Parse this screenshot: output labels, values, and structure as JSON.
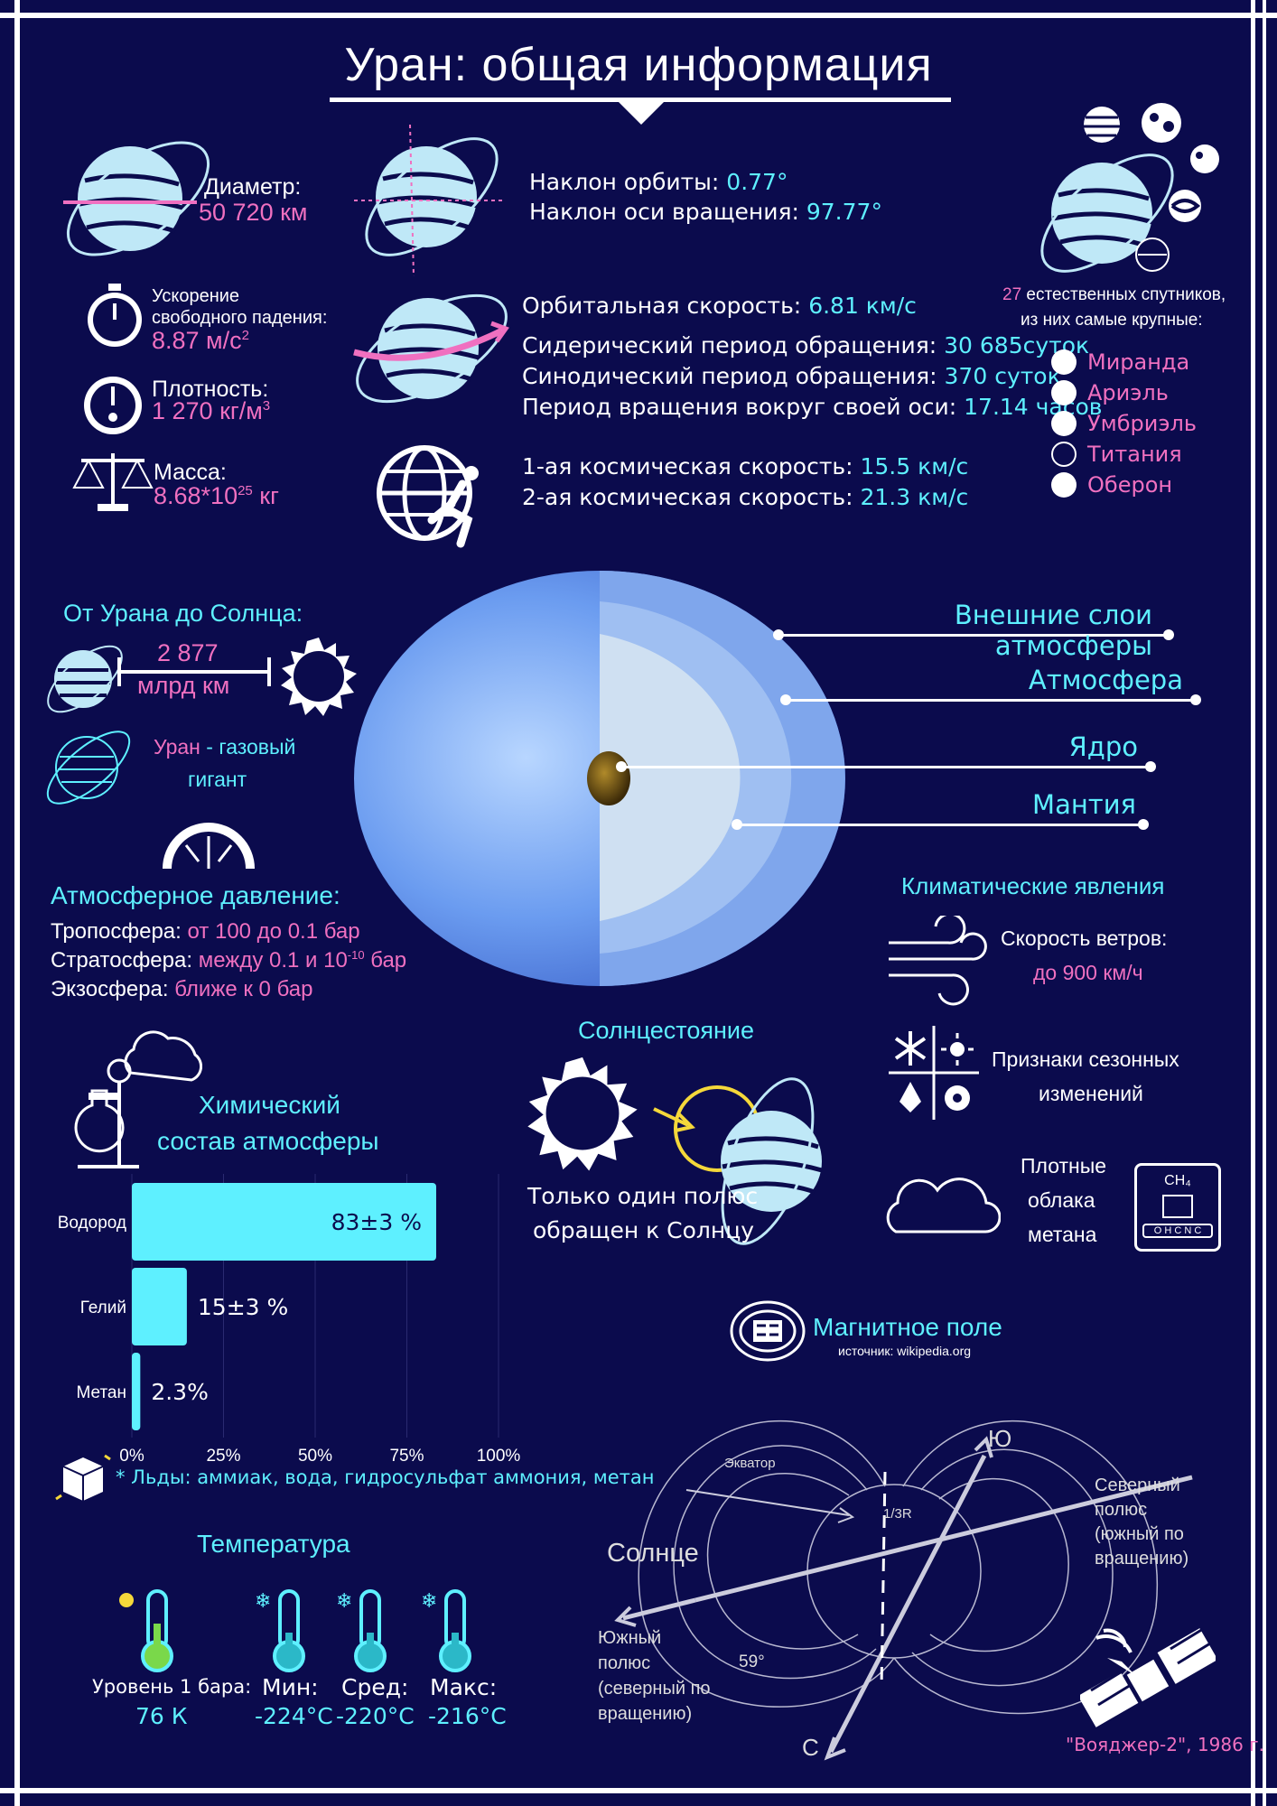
{
  "title": "Уран: общая информация",
  "colors": {
    "background": "#0b0b4d",
    "accent_pink": "#f070c0",
    "accent_cyan": "#5ef0ff",
    "planet": "#bfe8f7"
  },
  "stats": {
    "diameter_label": "Диаметр:",
    "diameter_value": "50 720 км",
    "gravity_label_1": "Ускорение",
    "gravity_label_2": "свободного падения:",
    "gravity_value": "8.87 м/с",
    "gravity_exp": "2",
    "density_label": "Плотность:",
    "density_value": "1 270 кг/м",
    "density_exp": "3",
    "mass_label": "Масса:",
    "mass_value": "8.68*10",
    "mass_exp": "25",
    "mass_unit": " кг"
  },
  "orbit": {
    "incl_label": "Наклон орбиты: ",
    "incl_value": "0.77°",
    "axis_label": "Наклон оси вращения: ",
    "axis_value": "97.77°",
    "speed_label": "Орбитальная скорость: ",
    "speed_value": "6.81 км/с",
    "sidereal_label": "Сидерический период обращения: ",
    "sidereal_value": "30 685суток",
    "synodic_label": "Синодический период обращения:  ",
    "synodic_value": "370 суток",
    "rotation_label": "Период вращения вокруг своей оси: ",
    "rotation_value": "17.14 часов",
    "cosmic1_label": "1-ая космическая скорость: ",
    "cosmic1_value": "15.5 км/с",
    "cosmic2_label": "2-ая космическая скорость: ",
    "cosmic2_value": "21.3 км/с"
  },
  "moons": {
    "count": "27",
    "text_1": " естественных спутников,",
    "text_2": "из них самые крупные:",
    "names": [
      "Миранда",
      "Ариэль",
      "Умбриэль",
      "Титания",
      "Оберон"
    ]
  },
  "sun_distance": {
    "title": "От Урана до Солнца:",
    "value": "2 877",
    "unit": "млрд км"
  },
  "gas_giant": {
    "name": "Уран",
    "text": " - газовый",
    "text_2": "гигант"
  },
  "layers": [
    "Внешние слои атмосферы",
    "Атмосфера",
    "Ядро",
    "Мантия"
  ],
  "pressure": {
    "title": "Атмосферное давление:",
    "rows": [
      {
        "label": "Тропосфера: ",
        "value": "от 100 до 0.1 бар"
      },
      {
        "label": "Стратосфера: ",
        "value": "между 0.1 и 10",
        "exp": "-10",
        "tail": " бар"
      },
      {
        "label": "Экзосфера: ",
        "value": "ближе к 0 бар"
      }
    ]
  },
  "climate": {
    "title": "Климатические явления",
    "wind_label": "Скорость ветров:",
    "wind_value": "до 900 км/ч",
    "season_1": "Признаки сезонных",
    "season_2": "изменений",
    "clouds_1": "Плотные",
    "clouds_2": "облака",
    "clouds_3": "метана",
    "methane_formula_top": "CH₄",
    "methane_formula_bottom": "O H C N C"
  },
  "solstice": {
    "title": "Солнцестояние",
    "text_1": "Только один полюс",
    "text_2": "обращен к Солнцу"
  },
  "chemistry": {
    "title_1": "Химический",
    "title_2": "состав атмосферы",
    "note": "* Льды: аммиак, вода, гидросульфат аммония, метан"
  },
  "chart_data": {
    "type": "bar",
    "orientation": "horizontal",
    "categories": [
      "Водород",
      "Гелий",
      "Метан"
    ],
    "values": [
      83,
      15,
      2.3
    ],
    "value_labels": [
      "83±3 %",
      "15±3 %",
      "2.3%"
    ],
    "x_ticks": [
      "0%",
      "25%",
      "50%",
      "75%",
      "100%"
    ],
    "xlim": [
      0,
      100
    ],
    "title": "Химический состав атмосферы"
  },
  "temperature": {
    "title": "Температура",
    "level_label": "Уровень 1 бара:",
    "level_value": "76 К",
    "min_label": "Мин:",
    "min_value": "-224°C",
    "avg_label": "Сред:",
    "avg_value": "-220°C",
    "max_label": "Макс:",
    "max_value": "-216°C"
  },
  "magnetic": {
    "title": "Магнитное поле",
    "source": "источник: wikipedia.org",
    "equator": "Экватор",
    "ratio": "1/3R",
    "south_letter": "Ю",
    "north_letter": "С",
    "sun": "Солнце",
    "north_pole_1": "Северный",
    "north_pole_2": "полюс",
    "north_pole_3": "(южный по",
    "north_pole_4": "вращению)",
    "south_pole_1": "Южный",
    "south_pole_2": "полюс",
    "south_pole_3": "(северный по",
    "south_pole_4": "вращению)",
    "angle": "59°",
    "voyager": "\"Вояджер-2\", 1986 г."
  }
}
